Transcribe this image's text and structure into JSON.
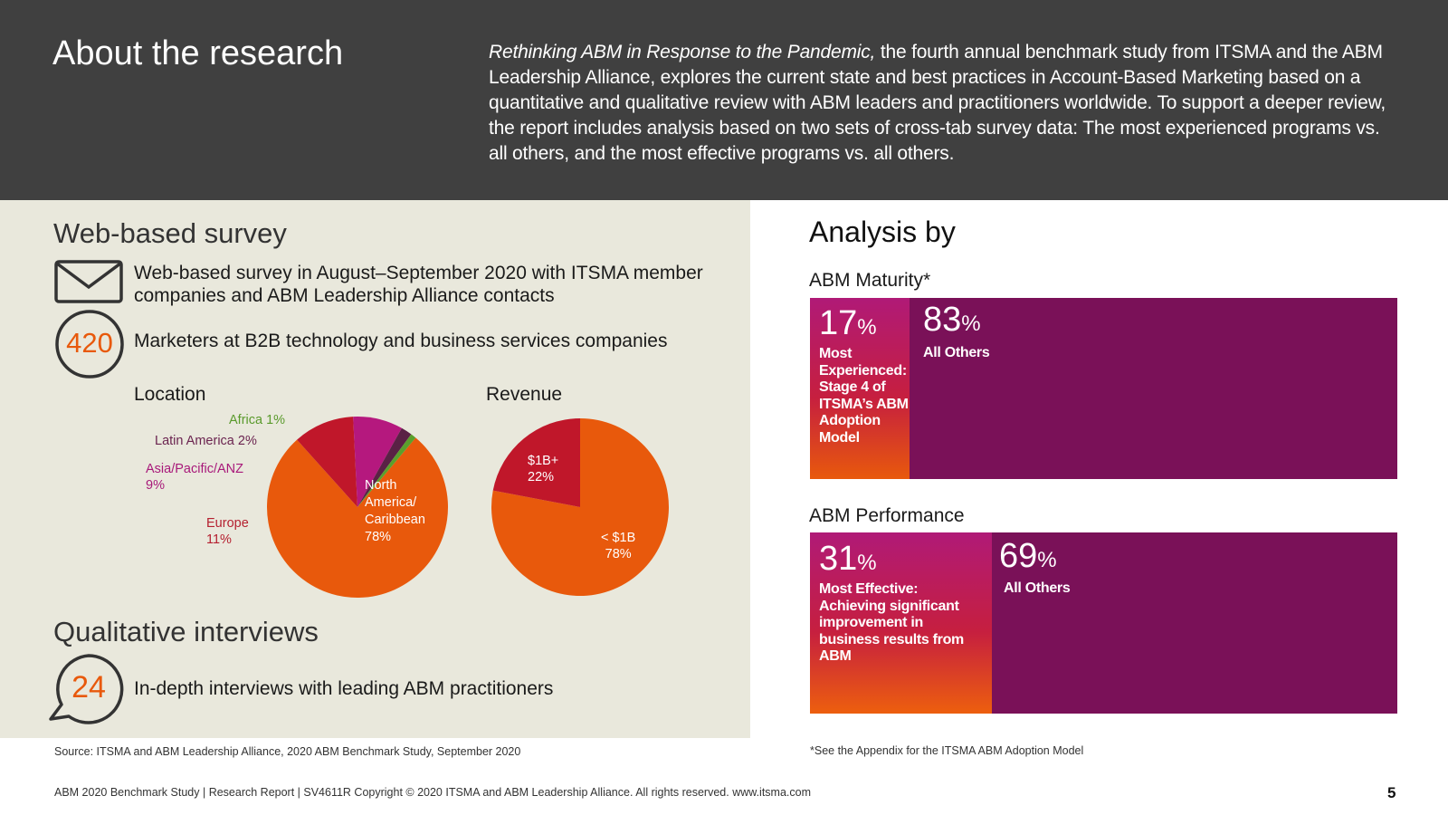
{
  "header": {
    "title": "About the research",
    "intro_italic": "Rethinking ABM in Response to the Pandemic,",
    "intro_rest": " the fourth annual benchmark study from ITSMA and the ABM Leadership Alliance, explores the current state and best practices in Account-Based Marketing based on a quantitative and qualitative review with ABM leaders and practitioners worldwide. To support a deeper review, the report includes analysis based on two sets of cross-tab survey data: The most experienced programs vs. all others, and the most effective programs vs. all others."
  },
  "survey": {
    "title": "Web-based survey",
    "description": "Web-based survey in August–September 2020 with ITSMA member companies and ABM Leadership Alliance contacts",
    "count": "420",
    "count_text": "Marketers at B2B technology and business services companies",
    "envelope_icon": "envelope-icon"
  },
  "interviews": {
    "title": "Qualitative interviews",
    "count": "24",
    "count_text": "In-depth interviews with leading ABM practitioners",
    "bubble_icon": "speech-bubble-icon"
  },
  "chart_data": [
    {
      "type": "pie",
      "title": "Location",
      "slices": [
        {
          "label": "North America/ Caribbean",
          "value": 78,
          "display": "78%",
          "color": "#e8590c"
        },
        {
          "label": "Europe",
          "value": 11,
          "display": "11%",
          "color": "#c0172a"
        },
        {
          "label": "Asia/Pacific/ANZ",
          "value": 9,
          "display": "9%",
          "color": "#b5187e"
        },
        {
          "label": "Latin America",
          "value": 2,
          "display": "2%",
          "color": "#5a2145"
        },
        {
          "label": "Africa",
          "value": 1,
          "display": "1%",
          "color": "#5aa02c"
        }
      ]
    },
    {
      "type": "pie",
      "title": "Revenue",
      "slices": [
        {
          "label": "< $1B",
          "value": 78,
          "display": "78%",
          "color": "#e8590c"
        },
        {
          "label": "$1B+",
          "value": 22,
          "display": "22%",
          "color": "#c0172a"
        }
      ]
    },
    {
      "type": "bar",
      "title": "ABM Maturity*",
      "segments": [
        {
          "value": 17,
          "label": "Most Experienced: Stage 4 of ITSMA’s ABM Adoption Model"
        },
        {
          "value": 83,
          "label": "All Others"
        }
      ]
    },
    {
      "type": "bar",
      "title": "ABM Performance",
      "segments": [
        {
          "value": 31,
          "label": "Most Effective: Achieving significant improvement in business results from ABM"
        },
        {
          "value": 69,
          "label": "All Others"
        }
      ]
    }
  ],
  "location_labels": {
    "africa": "Africa 1%",
    "latam": "Latin America 2%",
    "apac_1": "Asia/Pacific/ANZ",
    "apac_2": "9%",
    "europe_1": "Europe",
    "europe_2": "11%",
    "na_1": "North",
    "na_2": "America/",
    "na_3": "Caribbean",
    "na_4": "78%"
  },
  "revenue_labels": {
    "big_1": "$1B+",
    "big_2": "22%",
    "small_1": "< $1B",
    "small_2": "78%"
  },
  "analysis": {
    "title": "Analysis by",
    "maturity": {
      "heading": "ABM Maturity*",
      "main_pct": "17",
      "main_desc": "Most Experienced: Stage 4 of ITSMA’s ABM Adoption Model",
      "other_pct": "83",
      "other_desc": "All Others"
    },
    "performance": {
      "heading": "ABM Performance",
      "main_pct": "31",
      "main_desc": "Most Effective: Achieving significant improvement in business results from ABM",
      "other_pct": "69",
      "other_desc": "All Others"
    },
    "pct_sign": "%"
  },
  "footnotes": {
    "source": "Source: ITSMA and ABM Leadership Alliance, 2020 ABM Benchmark Study, September 2020",
    "appendix": "*See the Appendix for the ITSMA ABM Adoption Model"
  },
  "footer": {
    "text": "ABM 2020 Benchmark Study | Research Report | SV4611R Copyright © 2020 ITSMA and ABM Leadership Alliance. All rights reserved. www.itsma.com",
    "page": "5"
  },
  "colors": {
    "header_bg": "#404040",
    "panel_bg": "#e9e8dc",
    "accent_orange": "#e8590c",
    "accent_red": "#c0172a",
    "accent_magenta": "#b5187e",
    "bar_purple": "#7a1158"
  }
}
